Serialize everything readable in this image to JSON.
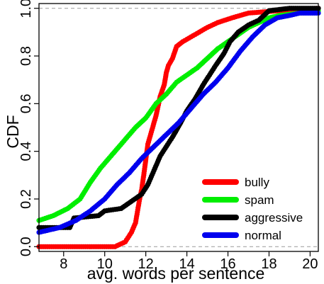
{
  "chart_data": {
    "type": "scatter",
    "xlabel": "avg. words per sentence",
    "ylabel": "CDF",
    "xlim": [
      6.8,
      20.4
    ],
    "ylim": [
      -0.02,
      1.02
    ],
    "x_ticks": [
      8,
      10,
      12,
      14,
      16,
      18,
      20
    ],
    "y_ticks": [
      0.0,
      0.2,
      0.4,
      0.6,
      0.8,
      1.0
    ],
    "x_tick_labels": [
      "8",
      "10",
      "12",
      "14",
      "16",
      "18",
      "20"
    ],
    "y_tick_labels": [
      "0.0",
      "0.2",
      "0.4",
      "0.6",
      "0.8",
      "1.0"
    ],
    "reference_lines_y": [
      0.0,
      1.0
    ],
    "grid": false,
    "legend_position": "bottom-right",
    "series": [
      {
        "name": "bully",
        "color": "#ff0000",
        "points": [
          [
            6.8,
            0.0
          ],
          [
            10.5,
            0.0
          ],
          [
            11.0,
            0.02
          ],
          [
            11.3,
            0.06
          ],
          [
            11.5,
            0.1
          ],
          [
            11.7,
            0.2
          ],
          [
            11.8,
            0.24
          ],
          [
            11.9,
            0.3
          ],
          [
            12.1,
            0.43
          ],
          [
            12.3,
            0.49
          ],
          [
            12.5,
            0.55
          ],
          [
            12.7,
            0.63
          ],
          [
            12.9,
            0.68
          ],
          [
            13.0,
            0.73
          ],
          [
            13.1,
            0.76
          ],
          [
            13.3,
            0.79
          ],
          [
            13.5,
            0.84
          ],
          [
            13.8,
            0.86
          ],
          [
            14.2,
            0.88
          ],
          [
            14.6,
            0.9
          ],
          [
            15.0,
            0.92
          ],
          [
            15.5,
            0.94
          ],
          [
            16.2,
            0.96
          ],
          [
            17.0,
            0.98
          ],
          [
            18.5,
            0.99
          ],
          [
            20.4,
            1.0
          ]
        ]
      },
      {
        "name": "spam",
        "color": "#00ee00",
        "points": [
          [
            6.8,
            0.11
          ],
          [
            7.5,
            0.13
          ],
          [
            8.2,
            0.16
          ],
          [
            8.8,
            0.2
          ],
          [
            9.3,
            0.27
          ],
          [
            9.8,
            0.33
          ],
          [
            10.3,
            0.38
          ],
          [
            10.7,
            0.42
          ],
          [
            11.0,
            0.45
          ],
          [
            11.5,
            0.5
          ],
          [
            12.0,
            0.54
          ],
          [
            12.5,
            0.6
          ],
          [
            13.0,
            0.64
          ],
          [
            13.5,
            0.69
          ],
          [
            14.0,
            0.72
          ],
          [
            14.5,
            0.75
          ],
          [
            15.0,
            0.79
          ],
          [
            15.5,
            0.83
          ],
          [
            16.0,
            0.86
          ],
          [
            16.5,
            0.89
          ],
          [
            17.0,
            0.92
          ],
          [
            17.5,
            0.94
          ],
          [
            18.0,
            0.96
          ],
          [
            18.5,
            0.97
          ],
          [
            19.5,
            0.98
          ],
          [
            20.4,
            0.99
          ]
        ]
      },
      {
        "name": "aggressive",
        "color": "#000000",
        "points": [
          [
            6.8,
            0.08
          ],
          [
            8.3,
            0.08
          ],
          [
            8.5,
            0.12
          ],
          [
            9.7,
            0.13
          ],
          [
            10.0,
            0.15
          ],
          [
            10.8,
            0.16
          ],
          [
            11.3,
            0.19
          ],
          [
            11.8,
            0.22
          ],
          [
            12.1,
            0.26
          ],
          [
            12.4,
            0.32
          ],
          [
            12.7,
            0.38
          ],
          [
            13.0,
            0.42
          ],
          [
            13.3,
            0.46
          ],
          [
            13.7,
            0.52
          ],
          [
            14.0,
            0.57
          ],
          [
            14.4,
            0.62
          ],
          [
            14.8,
            0.68
          ],
          [
            15.1,
            0.72
          ],
          [
            15.4,
            0.76
          ],
          [
            15.8,
            0.81
          ],
          [
            16.1,
            0.86
          ],
          [
            16.5,
            0.9
          ],
          [
            17.0,
            0.93
          ],
          [
            17.5,
            0.95
          ],
          [
            18.0,
            0.99
          ],
          [
            19.0,
            1.0
          ],
          [
            20.4,
            1.0
          ]
        ]
      },
      {
        "name": "normal",
        "color": "#0000ee",
        "points": [
          [
            6.8,
            0.06
          ],
          [
            7.8,
            0.08
          ],
          [
            8.6,
            0.11
          ],
          [
            9.3,
            0.15
          ],
          [
            10.0,
            0.2
          ],
          [
            10.6,
            0.26
          ],
          [
            11.2,
            0.31
          ],
          [
            11.8,
            0.37
          ],
          [
            12.4,
            0.42
          ],
          [
            13.0,
            0.47
          ],
          [
            13.6,
            0.52
          ],
          [
            14.2,
            0.58
          ],
          [
            14.8,
            0.64
          ],
          [
            15.4,
            0.69
          ],
          [
            16.0,
            0.75
          ],
          [
            16.6,
            0.82
          ],
          [
            17.2,
            0.88
          ],
          [
            17.8,
            0.93
          ],
          [
            18.4,
            0.96
          ],
          [
            19.0,
            0.97
          ],
          [
            19.5,
            0.98
          ],
          [
            20.4,
            0.98
          ]
        ]
      }
    ]
  }
}
